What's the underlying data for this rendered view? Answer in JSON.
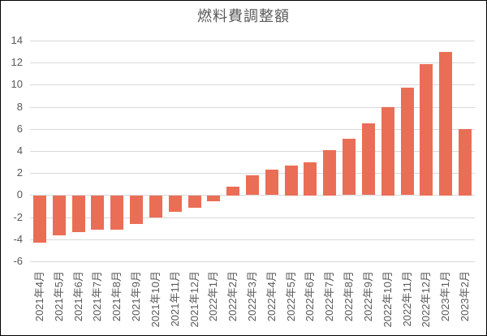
{
  "chart_data": {
    "type": "bar",
    "title": "燃料費調整額",
    "categories": [
      "2021年4月",
      "2021年5月",
      "2021年6月",
      "2021年7月",
      "2021年8月",
      "2021年9月",
      "2021年10月",
      "2021年11月",
      "2021年12月",
      "2022年1月",
      "2022年2月",
      "2022年3月",
      "2022年4月",
      "2022年5月",
      "2022年6月",
      "2022年7月",
      "2022年8月",
      "2022年9月",
      "2022年10月",
      "2022年11月",
      "2022年12月",
      "2023年1月",
      "2023年2月"
    ],
    "values": [
      -4.3,
      -3.6,
      -3.3,
      -3.1,
      -3.1,
      -2.6,
      -2.0,
      -1.5,
      -1.1,
      -0.5,
      0.8,
      1.8,
      2.3,
      2.7,
      3.0,
      4.1,
      5.1,
      6.5,
      8.0,
      9.7,
      11.9,
      13.0,
      6.0
    ],
    "xlabel": "",
    "ylabel": "",
    "ylim": [
      -6,
      14
    ],
    "yticks": [
      14,
      12,
      10,
      8,
      6,
      4,
      2,
      0,
      -2,
      -4,
      -6
    ],
    "grid": true,
    "legend_position": "none",
    "colors": {
      "bar": "#EA6E56",
      "gridline": "#D9D9D9",
      "text": "#595959",
      "background": "#FFFFFF",
      "frame_border": "#000000"
    }
  }
}
